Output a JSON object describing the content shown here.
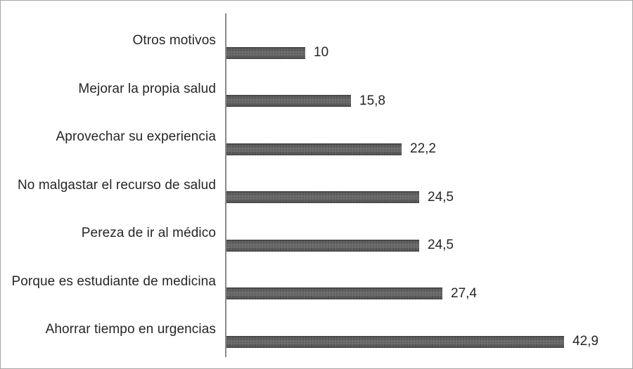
{
  "chart_data": {
    "type": "bar",
    "orientation": "horizontal",
    "title": "",
    "xlabel": "",
    "ylabel": "",
    "categories": [
      "Otros motivos",
      "Mejorar la propia salud",
      "Aprovechar su experiencia",
      "No malgastar el recurso de salud",
      "Pereza de ir al médico",
      "Porque es estudiante de medicina",
      "Ahorrar tiempo en urgencias"
    ],
    "values": [
      10,
      15.8,
      22.2,
      24.5,
      24.5,
      27.4,
      42.9
    ],
    "value_labels": [
      "10",
      "15,8",
      "22,2",
      "24,5",
      "24,5",
      "27,4",
      "42,9"
    ],
    "decimal_separator": ",",
    "xlim": [
      0,
      50
    ],
    "grid": false,
    "legend": false,
    "data_labels": true,
    "colors": {
      "bar_fill": "#5f5f5f",
      "axis_line": "#8a8a8a",
      "label_text": "#262626",
      "frame_border": "#a6a6a6",
      "background": "#ffffff"
    }
  }
}
